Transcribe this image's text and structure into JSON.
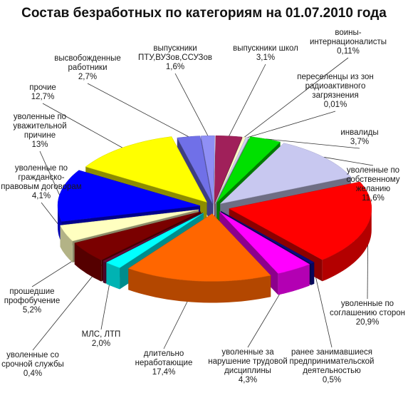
{
  "chart_data": {
    "type": "pie",
    "title": "Состав безработных по категориям на 01.07.2010 года",
    "slices": [
      {
        "label_lines": [
          "выпускники",
          "ПТУ,ВУЗов,ССУЗов"
        ],
        "value": 1.6,
        "value_text": "1,6%",
        "color": "#8F8FF5"
      },
      {
        "label_lines": [
          "выпускники школ"
        ],
        "value": 3.1,
        "value_text": "3,1%",
        "color": "#A0205A"
      },
      {
        "label_lines": [
          "воины-",
          "интернационалисты"
        ],
        "value": 0.11,
        "value_text": "0,11%",
        "color": "#FFFFC8"
      },
      {
        "label_lines": [
          "переселенцы  из зон",
          "радиоактивного",
          "загрязнения"
        ],
        "value": 0.01,
        "value_text": "0,01%",
        "color": "#D0D0F0"
      },
      {
        "label_lines": [
          "инвалиды"
        ],
        "value": 3.7,
        "value_text": "3,7%",
        "color": "#00E000"
      },
      {
        "label_lines": [
          "уволенные по",
          "собственному",
          "желанию"
        ],
        "value": 11.6,
        "value_text": "11,6%",
        "color": "#C8C8F0"
      },
      {
        "label_lines": [
          "уволенные по",
          "соглашению сторон"
        ],
        "value": 20.9,
        "value_text": "20,9%",
        "color": "#FF0000"
      },
      {
        "label_lines": [
          "ранее занимавшиеся",
          "предпринимательской",
          "деятельностью"
        ],
        "value": 0.5,
        "value_text": "0,5%",
        "color": "#0A0A80"
      },
      {
        "label_lines": [
          "уволенные за",
          "нарушение трудовой",
          "дисциплины"
        ],
        "value": 4.3,
        "value_text": "4,3%",
        "color": "#FF00FF"
      },
      {
        "label_lines": [
          "длительно",
          "неработающие"
        ],
        "value": 17.4,
        "value_text": "17,4%",
        "color": "#FF6600"
      },
      {
        "label_lines": [
          "МЛС, ЛТП"
        ],
        "value": 2.0,
        "value_text": "2,0%",
        "color": "#00FFFF"
      },
      {
        "label_lines": [
          "уволенные со",
          "срочной службы"
        ],
        "value": 0.4,
        "value_text": "0,4%",
        "color": "#6A0A3A"
      },
      {
        "label_lines": [
          "прошедшие",
          "профобучение"
        ],
        "value": 5.2,
        "value_text": "5,2%",
        "color": "#7A0000"
      },
      {
        "label_lines": [
          "уволенные по",
          "гражданско-",
          "правовым договорам"
        ],
        "value": 4.1,
        "value_text": "4,1%",
        "color": "#FFFFC0"
      },
      {
        "label_lines": [
          "уволенные по",
          "уважительной",
          "причине"
        ],
        "value": 13.0,
        "value_text": "13%",
        "color": "#0000FF"
      },
      {
        "label_lines": [
          "прочие"
        ],
        "value": 12.7,
        "value_text": "12,7%",
        "color": "#FFFF00"
      },
      {
        "label_lines": [
          "высвобожденные",
          "работники"
        ],
        "value": 2.7,
        "value_text": "2,7%",
        "color": "#7070E8"
      }
    ],
    "style": "3d-exploded-pie",
    "legend": "none"
  }
}
